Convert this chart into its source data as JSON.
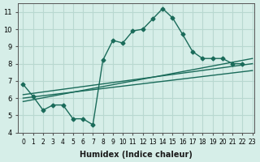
{
  "xlabel": "Humidex (Indice chaleur)",
  "bg_color": "#d6eee8",
  "grid_color": "#b8d8d0",
  "line_color": "#1a6b5a",
  "xlim_min": -0.5,
  "xlim_max": 23.2,
  "ylim_min": 4.0,
  "ylim_max": 11.5,
  "yticks": [
    4,
    5,
    6,
    7,
    8,
    9,
    10,
    11
  ],
  "xticks": [
    0,
    1,
    2,
    3,
    4,
    5,
    6,
    7,
    8,
    9,
    10,
    11,
    12,
    13,
    14,
    15,
    16,
    17,
    18,
    19,
    20,
    21,
    22,
    23
  ],
  "main_line_x": [
    0,
    1,
    2,
    3,
    4,
    5,
    6,
    7,
    8,
    9,
    10,
    11,
    12,
    13,
    14,
    15,
    16,
    17,
    18,
    19,
    20,
    21,
    22
  ],
  "main_line_y": [
    6.8,
    6.1,
    5.3,
    5.6,
    5.6,
    4.8,
    4.8,
    4.45,
    8.2,
    9.35,
    9.2,
    9.9,
    10.0,
    10.6,
    11.2,
    10.65,
    9.7,
    8.7,
    8.3,
    8.3,
    8.3,
    8.0,
    8.0
  ],
  "reg_line1_x": [
    0,
    23
  ],
  "reg_line1_y": [
    6.2,
    8.0
  ],
  "reg_line2_x": [
    0,
    23
  ],
  "reg_line2_y": [
    6.0,
    7.6
  ],
  "reg_line3_x": [
    0,
    23
  ],
  "reg_line3_y": [
    5.8,
    8.3
  ]
}
